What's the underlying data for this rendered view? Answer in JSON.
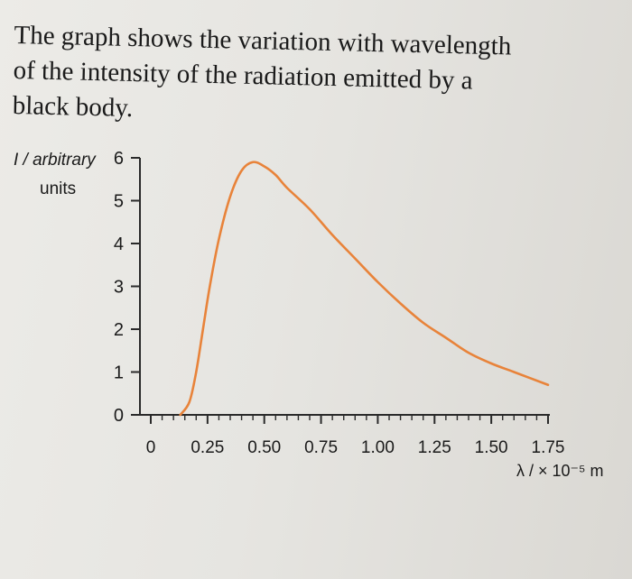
{
  "question": {
    "line1": "The graph shows the variation with wavelength",
    "line2": "of the intensity of the radiation emitted by a",
    "line3": "black body."
  },
  "chart_data": {
    "type": "line",
    "ylabel_line1": "I / arbitrary",
    "ylabel_line2": "units",
    "xlabel": "λ / × 10⁻⁵ m",
    "xlim": [
      0,
      1.75
    ],
    "ylim": [
      0,
      6
    ],
    "x_ticks": [
      "0",
      "0.25",
      "0.50",
      "0.75",
      "1.00",
      "1.25",
      "1.50",
      "1.75"
    ],
    "y_ticks": [
      "0",
      "1",
      "2",
      "3",
      "4",
      "5",
      "6"
    ],
    "grid": false,
    "series": [
      {
        "color": "#e8833a",
        "x": [
          0.13,
          0.17,
          0.2,
          0.23,
          0.26,
          0.3,
          0.35,
          0.4,
          0.45,
          0.5,
          0.55,
          0.6,
          0.7,
          0.8,
          0.9,
          1.0,
          1.1,
          1.2,
          1.3,
          1.4,
          1.5,
          1.6,
          1.75
        ],
        "y": [
          0.0,
          0.3,
          1.0,
          2.0,
          3.0,
          4.1,
          5.1,
          5.7,
          5.9,
          5.8,
          5.6,
          5.3,
          4.8,
          4.2,
          3.65,
          3.1,
          2.6,
          2.15,
          1.8,
          1.45,
          1.2,
          1.0,
          0.7
        ]
      }
    ]
  },
  "colors": {
    "axis": "#2a2a2a",
    "curve": "#e8833a",
    "text": "#1a1a1a"
  }
}
